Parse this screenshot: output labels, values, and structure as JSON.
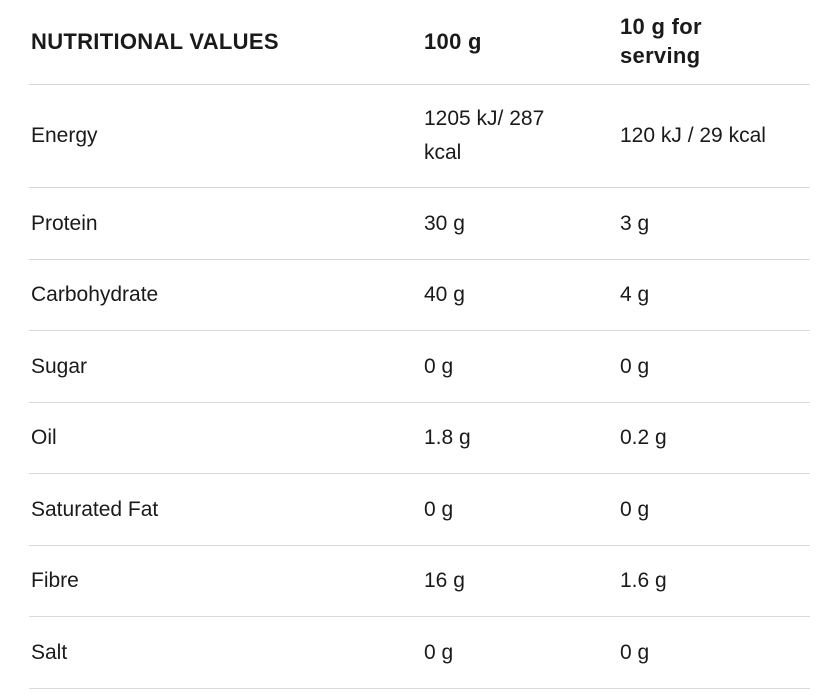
{
  "table": {
    "headers": {
      "label": "NUTRITIONAL VALUES",
      "per100": "100 g",
      "serving": "10 g for serving"
    },
    "rows": [
      {
        "label": "Energy",
        "per100": "1205 kJ/ 287 kcal",
        "serving": "120 kJ / 29 kcal"
      },
      {
        "label": "Protein",
        "per100": "30 g",
        "serving": "3 g"
      },
      {
        "label": "Carbohydrate",
        "per100": "40 g",
        "serving": "4 g"
      },
      {
        "label": "Sugar",
        "per100": "0 g",
        "serving": "0 g"
      },
      {
        "label": "Oil",
        "per100": "1.8 g",
        "serving": "0.2 g"
      },
      {
        "label": "Saturated Fat",
        "per100": "0 g",
        "serving": "0 g"
      },
      {
        "label": "Fibre",
        "per100": "16 g",
        "serving": "1.6 g"
      },
      {
        "label": "Salt",
        "per100": "0 g",
        "serving": "0 g"
      }
    ],
    "colors": {
      "text": "#1a1a1a",
      "divider": "#d9d9d9",
      "background": "#ffffff"
    }
  }
}
